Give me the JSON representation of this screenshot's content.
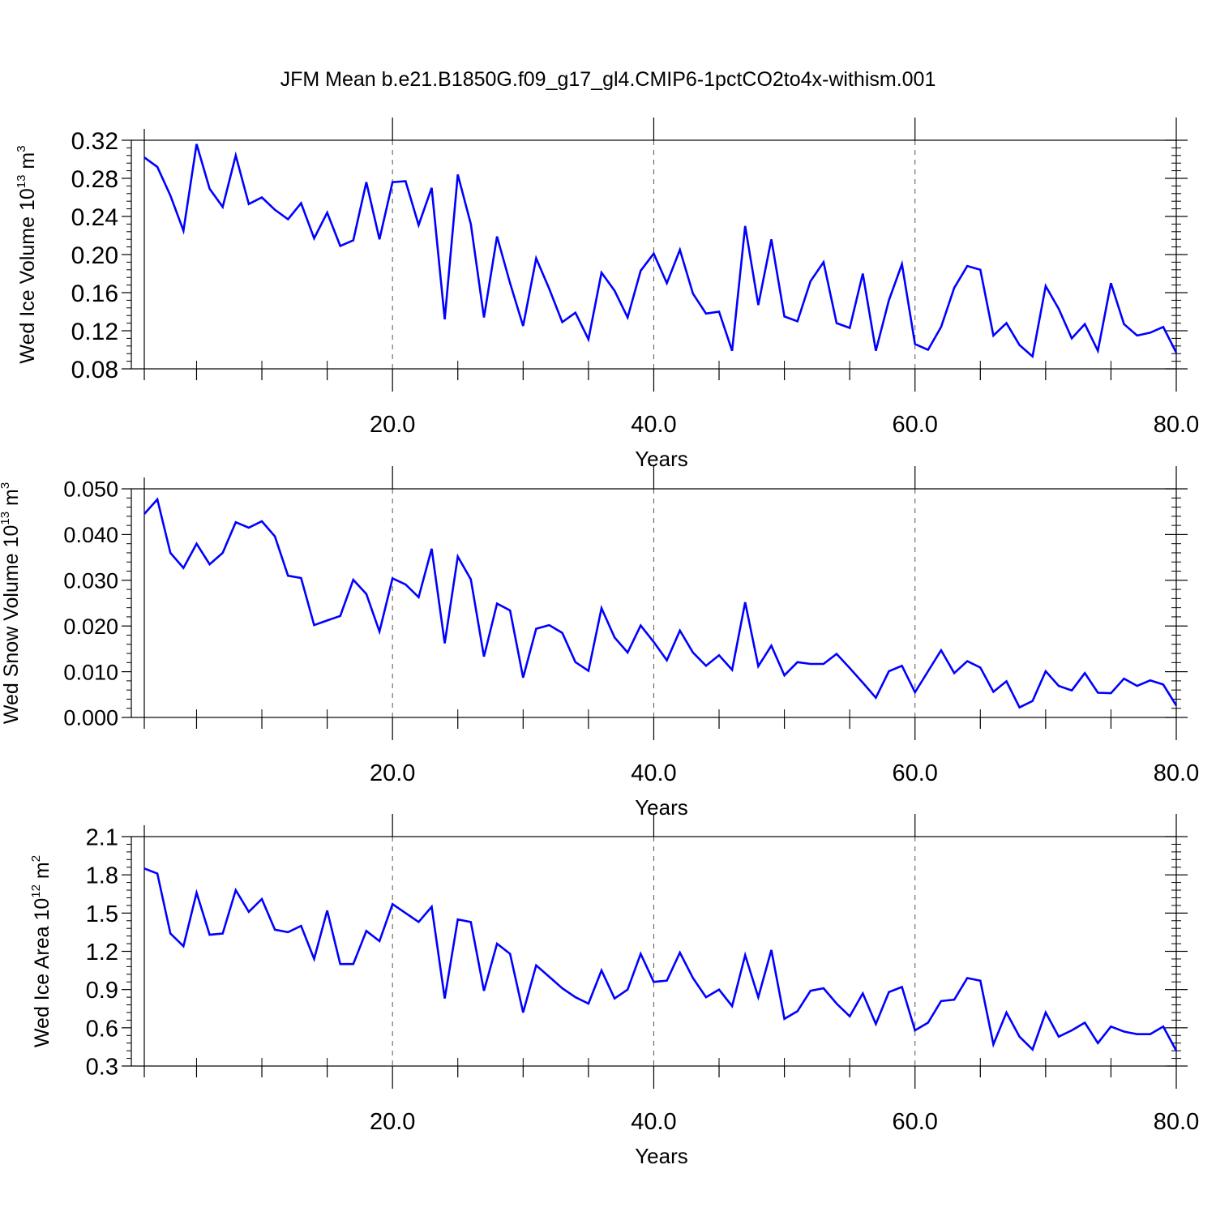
{
  "title": "JFM Mean b.e21.B1850G.f09_g17_gl4.CMIP6-1pctCO2to4x-withism.001",
  "line_color": "#0000ff",
  "chart_data": [
    {
      "type": "line",
      "ylabel_main": "Wed Ice Volume 10",
      "ylabel_exp": "13",
      "ylabel_unit": "m",
      "ylabel_unit_exp": "3",
      "xlabel": "Years",
      "xlim": [
        1,
        80
      ],
      "ylim": [
        0.08,
        0.32
      ],
      "xticks": [
        20,
        40,
        60,
        80
      ],
      "xtick_labels": [
        "20.0",
        "40.0",
        "60.0",
        "80.0"
      ],
      "yticks": [
        0.08,
        0.12,
        0.16,
        0.2,
        0.24,
        0.28,
        0.32
      ],
      "ytick_labels": [
        "0.08",
        "0.12",
        "0.16",
        "0.20",
        "0.24",
        "0.28",
        "0.32"
      ],
      "grid": "dashed vertical at x ticks",
      "series": [
        {
          "values": [
            0.302,
            0.292,
            0.262,
            0.225,
            0.316,
            0.269,
            0.25,
            0.304,
            0.253,
            0.26,
            0.247,
            0.237,
            0.254,
            0.217,
            0.244,
            0.209,
            0.215,
            0.276,
            0.216,
            0.276,
            0.277,
            0.231,
            0.27,
            0.132,
            0.284,
            0.232,
            0.134,
            0.219,
            0.17,
            0.125,
            0.196,
            0.164,
            0.129,
            0.139,
            0.111,
            0.181,
            0.162,
            0.134,
            0.183,
            0.201,
            0.17,
            0.205,
            0.159,
            0.138,
            0.14,
            0.099,
            0.23,
            0.147,
            0.216,
            0.135,
            0.13,
            0.172,
            0.192,
            0.128,
            0.123,
            0.18,
            0.099,
            0.152,
            0.19,
            0.106,
            0.1,
            0.124,
            0.165,
            0.188,
            0.184,
            0.115,
            0.128,
            0.105,
            0.093,
            0.167,
            0.143,
            0.112,
            0.127,
            0.099,
            0.17,
            0.127,
            0.115,
            0.118,
            0.124,
            0.097
          ]
        }
      ]
    },
    {
      "type": "line",
      "ylabel_main": "Wed Snow Volume 10",
      "ylabel_exp": "13",
      "ylabel_unit": "m",
      "ylabel_unit_exp": "3",
      "xlabel": "Years",
      "xlim": [
        1,
        80
      ],
      "ylim": [
        0.0,
        0.05
      ],
      "xticks": [
        20,
        40,
        60,
        80
      ],
      "xtick_labels": [
        "20.0",
        "40.0",
        "60.0",
        "80.0"
      ],
      "yticks": [
        0.0,
        0.01,
        0.02,
        0.03,
        0.04,
        0.05
      ],
      "ytick_labels": [
        "0.000",
        "0.010",
        "0.020",
        "0.030",
        "0.040",
        "0.050"
      ],
      "grid": "dashed vertical at x ticks",
      "series": [
        {
          "values": [
            0.0445,
            0.0477,
            0.036,
            0.0327,
            0.038,
            0.0335,
            0.036,
            0.0427,
            0.0415,
            0.0429,
            0.0396,
            0.031,
            0.0305,
            0.0202,
            0.0212,
            0.0222,
            0.0301,
            0.027,
            0.0188,
            0.0304,
            0.0291,
            0.0263,
            0.0369,
            0.0162,
            0.0352,
            0.0302,
            0.0133,
            0.0249,
            0.0234,
            0.0087,
            0.0194,
            0.0202,
            0.0185,
            0.0121,
            0.0102,
            0.0239,
            0.0175,
            0.0142,
            0.0201,
            0.0165,
            0.0125,
            0.019,
            0.0142,
            0.0113,
            0.0136,
            0.0104,
            0.0252,
            0.0112,
            0.0157,
            0.0092,
            0.0121,
            0.0117,
            0.0117,
            0.0139,
            0.0108,
            0.0076,
            0.0043,
            0.0101,
            0.0113,
            0.0055,
            0.0101,
            0.0147,
            0.0097,
            0.0123,
            0.0109,
            0.0056,
            0.0079,
            0.0022,
            0.0036,
            0.0101,
            0.0069,
            0.0059,
            0.0097,
            0.0054,
            0.0053,
            0.0085,
            0.0069,
            0.0081,
            0.0072,
            0.0026
          ]
        }
      ]
    },
    {
      "type": "line",
      "ylabel_main": "Wed Ice Area 10",
      "ylabel_exp": "12",
      "ylabel_unit": "m",
      "ylabel_unit_exp": "2",
      "xlabel": "Years",
      "xlim": [
        1,
        80
      ],
      "ylim": [
        0.3,
        2.1
      ],
      "xticks": [
        20,
        40,
        60,
        80
      ],
      "xtick_labels": [
        "20.0",
        "40.0",
        "60.0",
        "80.0"
      ],
      "yticks": [
        0.3,
        0.6,
        0.9,
        1.2,
        1.5,
        1.8,
        2.1
      ],
      "ytick_labels": [
        "0.3",
        "0.6",
        "0.9",
        "1.2",
        "1.5",
        "1.8",
        "2.1"
      ],
      "grid": "dashed vertical at x ticks",
      "series": [
        {
          "values": [
            1.85,
            1.81,
            1.34,
            1.24,
            1.66,
            1.33,
            1.34,
            1.68,
            1.51,
            1.61,
            1.37,
            1.35,
            1.4,
            1.14,
            1.52,
            1.1,
            1.1,
            1.36,
            1.28,
            1.57,
            1.5,
            1.43,
            1.55,
            0.83,
            1.45,
            1.43,
            0.89,
            1.26,
            1.18,
            0.72,
            1.09,
            1.0,
            0.91,
            0.84,
            0.79,
            1.05,
            0.83,
            0.9,
            1.18,
            0.96,
            0.97,
            1.19,
            0.99,
            0.84,
            0.9,
            0.77,
            1.17,
            0.84,
            1.21,
            0.67,
            0.73,
            0.89,
            0.91,
            0.79,
            0.69,
            0.87,
            0.63,
            0.88,
            0.92,
            0.58,
            0.64,
            0.81,
            0.82,
            0.99,
            0.97,
            0.47,
            0.72,
            0.53,
            0.43,
            0.72,
            0.53,
            0.58,
            0.64,
            0.48,
            0.61,
            0.57,
            0.55,
            0.55,
            0.61,
            0.42
          ]
        }
      ]
    }
  ]
}
